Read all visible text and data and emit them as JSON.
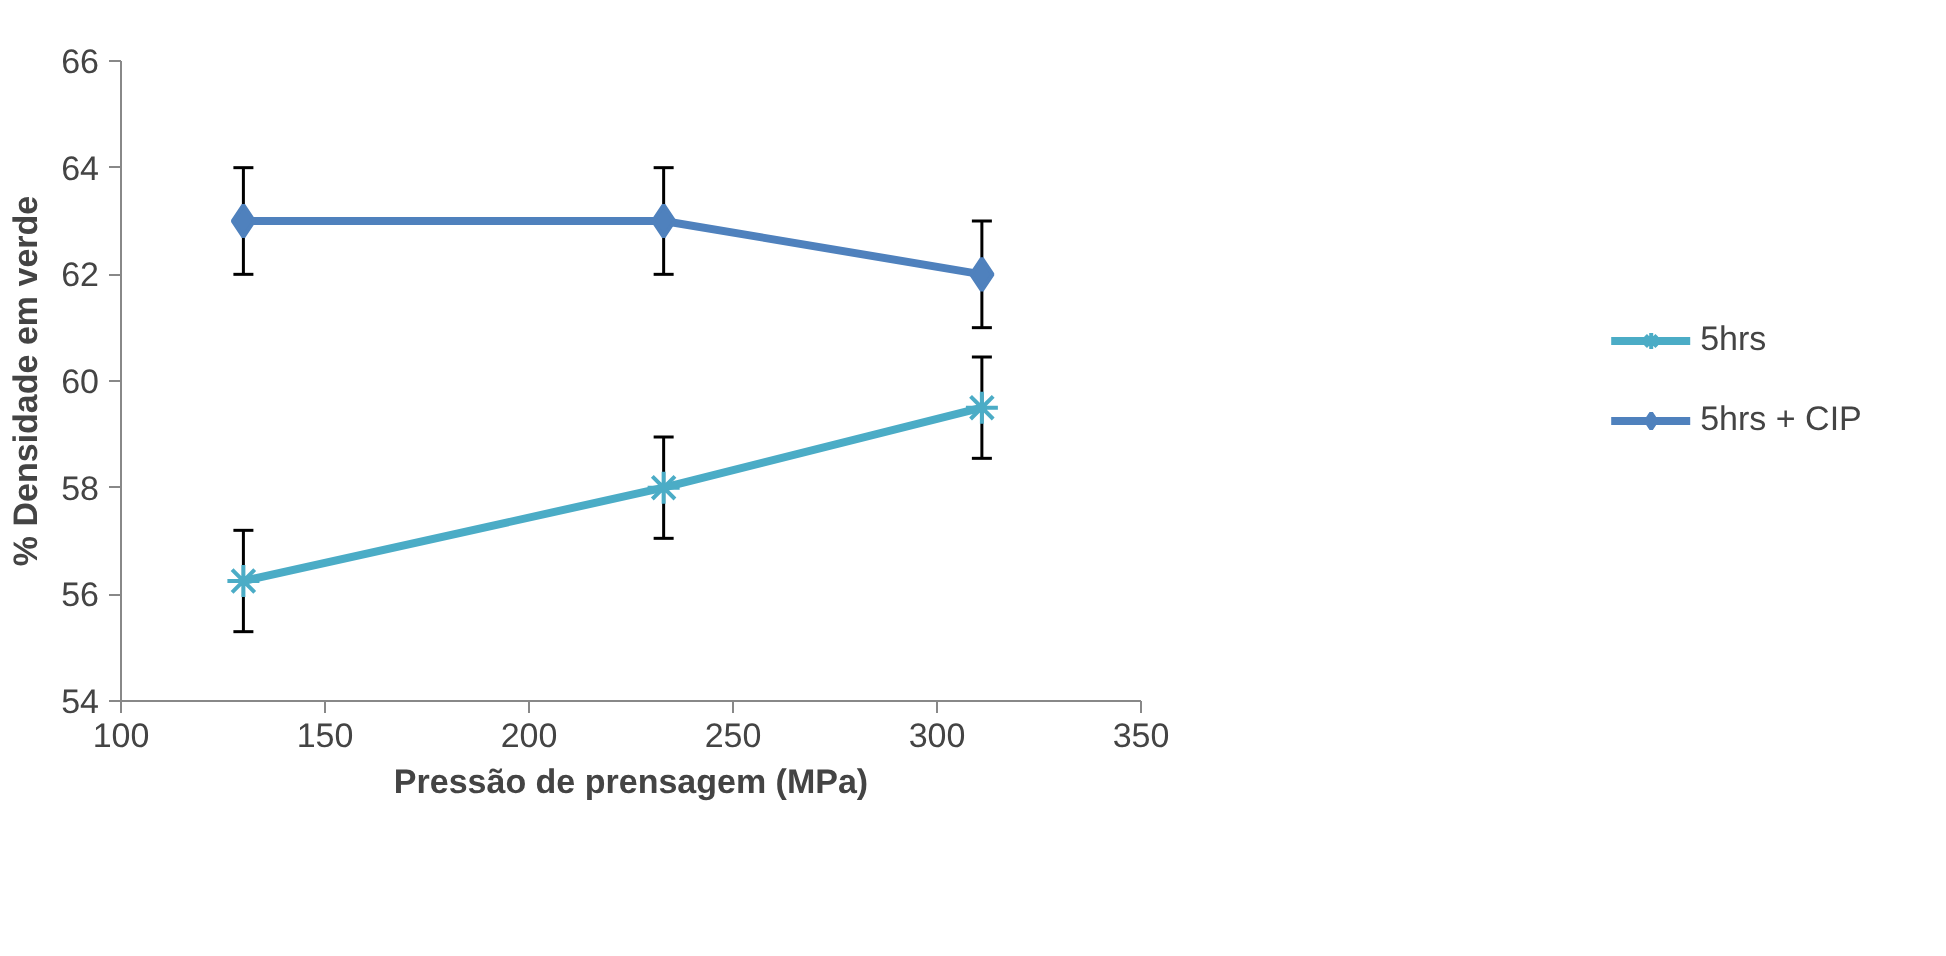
{
  "chart_data": {
    "type": "line",
    "xlabel": "Pressão de prensagem (MPa)",
    "ylabel": "% Densidade em verde",
    "x": [
      130,
      233,
      311
    ],
    "series": [
      {
        "name": "5hrs",
        "color": "#4bacc6",
        "values": [
          56.25,
          58.0,
          59.5
        ],
        "errors": [
          0.95,
          0.95,
          0.95
        ],
        "marker": "cross"
      },
      {
        "name": "5hrs + CIP",
        "color": "#4f81bd",
        "values": [
          63,
          63,
          62
        ],
        "errors": [
          1,
          1,
          1
        ],
        "marker": "diamond"
      }
    ],
    "xlim": [
      100,
      350
    ],
    "xticks": [
      100,
      150,
      200,
      250,
      300,
      350
    ],
    "ylim": [
      54,
      66
    ],
    "yticks": [
      54,
      56,
      58,
      60,
      62,
      64,
      66
    ],
    "grid": false,
    "legend": "right",
    "line_style": "solid"
  }
}
